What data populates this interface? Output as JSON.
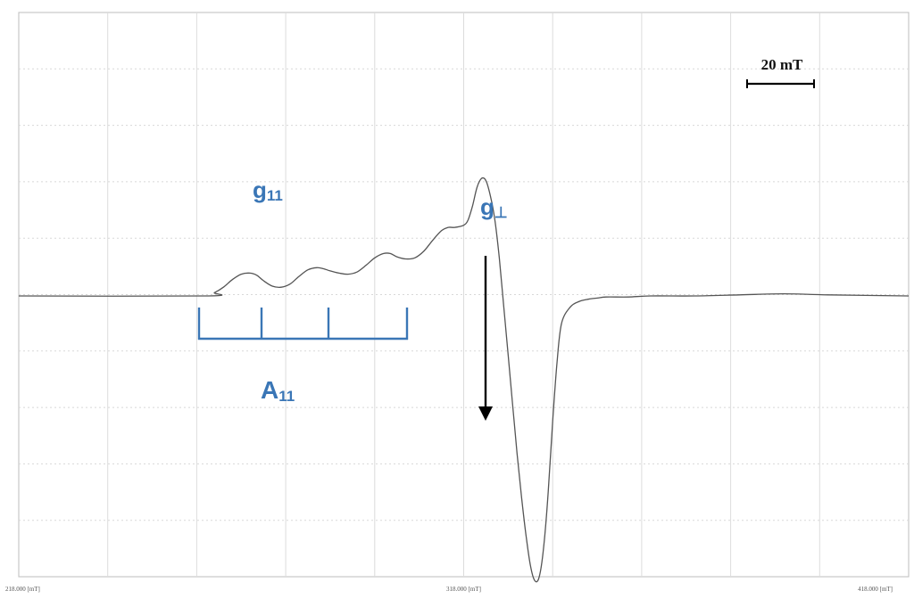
{
  "colors": {
    "annotation": "#3a76b6",
    "trace": "#555555",
    "grid": "#dcdcdc"
  },
  "chart_data": {
    "type": "line",
    "grid": true,
    "x_unit": "mT",
    "xlim": [
      218,
      418
    ],
    "x_ticks": [
      {
        "value": 218,
        "label": "218.000 [mT]"
      },
      {
        "value": 318,
        "label": "318.000 [mT]"
      },
      {
        "value": 418,
        "label": "418.000 [mT]"
      }
    ],
    "series": [
      {
        "x": [
          218,
          260,
          262,
          264,
          266,
          268,
          270,
          271.5,
          273,
          275,
          277,
          279,
          281,
          283,
          285,
          286.5,
          288,
          290,
          292,
          294,
          296,
          298,
          300,
          301.5,
          303,
          305,
          307,
          309,
          311,
          313,
          314.5,
          316,
          318,
          319,
          320,
          321,
          322,
          323,
          324,
          325,
          326,
          327,
          328,
          329,
          330,
          331,
          332,
          333,
          334,
          335,
          336,
          337,
          338,
          339,
          340,
          342,
          344,
          346,
          348,
          350,
          355,
          360,
          370,
          380,
          390,
          400,
          418
        ],
        "y": [
          0,
          0,
          0.03,
          0.08,
          0.15,
          0.2,
          0.21,
          0.19,
          0.14,
          0.09,
          0.08,
          0.11,
          0.18,
          0.24,
          0.26,
          0.25,
          0.23,
          0.21,
          0.2,
          0.22,
          0.28,
          0.35,
          0.39,
          0.39,
          0.36,
          0.34,
          0.35,
          0.41,
          0.51,
          0.6,
          0.63,
          0.63,
          0.65,
          0.7,
          0.83,
          1.0,
          1.08,
          1.06,
          0.92,
          0.7,
          0.35,
          -0.1,
          -0.55,
          -1.0,
          -1.45,
          -1.85,
          -2.2,
          -2.48,
          -2.62,
          -2.58,
          -2.3,
          -1.8,
          -1.15,
          -0.6,
          -0.25,
          -0.1,
          -0.05,
          -0.03,
          -0.02,
          -0.01,
          -0.01,
          0,
          0,
          0.01,
          0.02,
          0.01,
          0
        ]
      }
    ]
  },
  "annotations": {
    "g_parallel": {
      "main": "g",
      "sub": "11"
    },
    "g_perp": {
      "main": "g",
      "sub": "⊥"
    },
    "a_parallel": {
      "main": "A",
      "sub": "11"
    },
    "scale_bar": "20 mT"
  }
}
